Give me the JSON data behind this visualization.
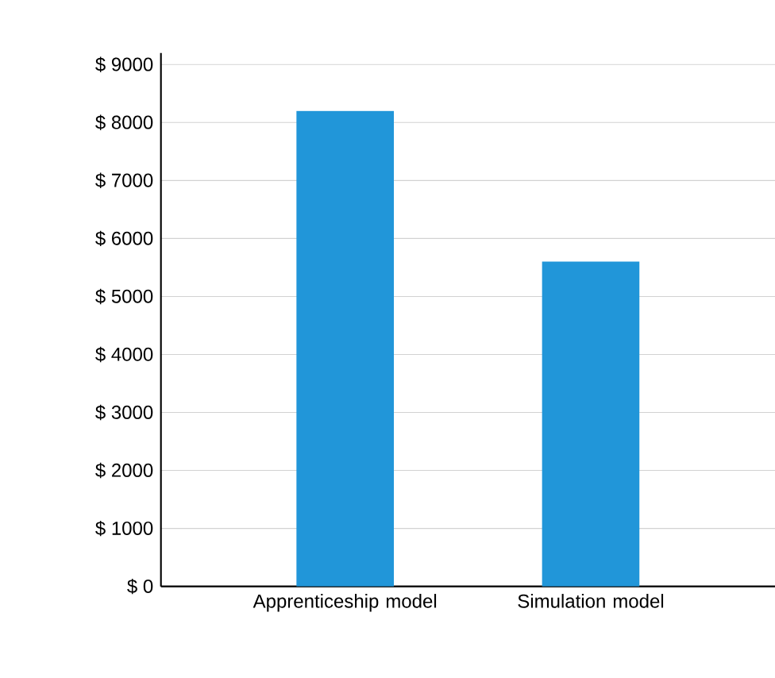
{
  "chart_data": {
    "type": "bar",
    "categories": [
      "Apprenticeship model",
      "Simulation model"
    ],
    "values": [
      8200,
      5600
    ],
    "color": "#2196d9",
    "ylim": [
      0,
      9200
    ],
    "yticks": [
      {
        "value": 0,
        "label": "$ 0"
      },
      {
        "value": 1000,
        "label": "$ 1000"
      },
      {
        "value": 2000,
        "label": "$ 2000"
      },
      {
        "value": 3000,
        "label": "$ 3000"
      },
      {
        "value": 4000,
        "label": "$ 4000"
      },
      {
        "value": 5000,
        "label": "$ 5000"
      },
      {
        "value": 6000,
        "label": "$ 6000"
      },
      {
        "value": 7000,
        "label": "$ 7000"
      },
      {
        "value": 8000,
        "label": "$ 8000"
      },
      {
        "value": 9000,
        "label": "$ 9000"
      }
    ],
    "grid": "y"
  }
}
